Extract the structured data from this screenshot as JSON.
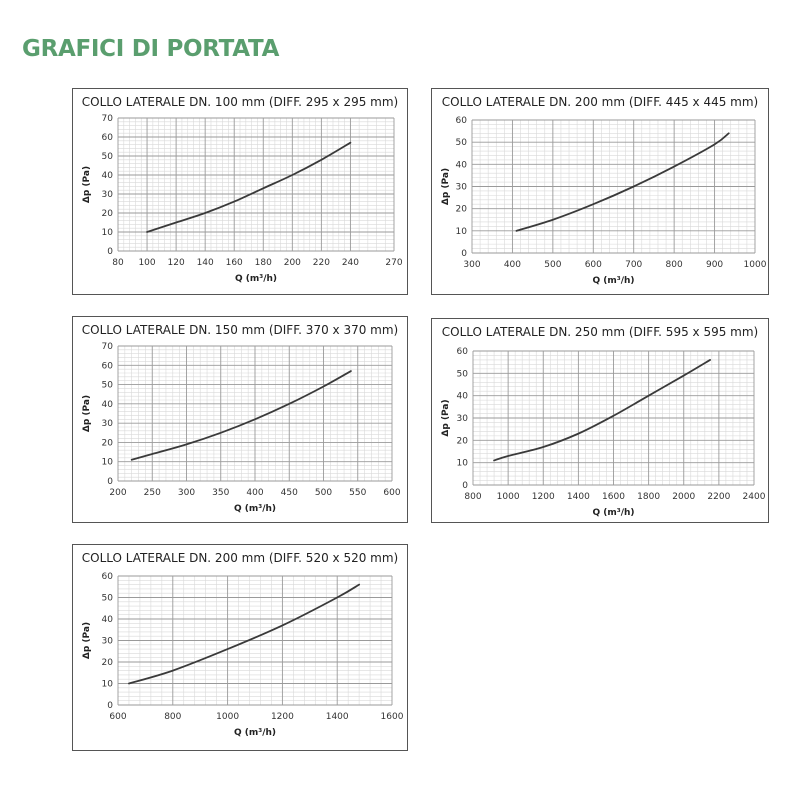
{
  "page": {
    "title": "GRAFICI DI PORTATA"
  },
  "chart_data": [
    {
      "type": "line",
      "title": "COLLO LATERALE DN. 100 mm (DIFF. 295 x 295 mm)",
      "xlabel": "Q (m³/h)",
      "ylabel": "Δp (Pa)",
      "xlim": [
        80,
        270
      ],
      "ylim": [
        0,
        70
      ],
      "xticks": [
        80,
        100,
        120,
        140,
        160,
        180,
        200,
        220,
        240,
        270
      ],
      "yticks": [
        0,
        10,
        20,
        30,
        40,
        50,
        60,
        70
      ],
      "grid": true,
      "x": [
        100,
        120,
        140,
        160,
        180,
        200,
        220,
        240
      ],
      "y": [
        10,
        15,
        20,
        26,
        33,
        40,
        48,
        57
      ]
    },
    {
      "type": "line",
      "title": "COLLO LATERALE DN. 200 mm (DIFF. 445 x 445 mm)",
      "xlabel": "Q (m³/h)",
      "ylabel": "Δp (Pa)",
      "xlim": [
        300,
        1000
      ],
      "ylim": [
        0,
        60
      ],
      "xticks": [
        300,
        400,
        500,
        600,
        700,
        800,
        900,
        1000
      ],
      "yticks": [
        0,
        10,
        20,
        30,
        40,
        50,
        60
      ],
      "grid": true,
      "x": [
        410,
        500,
        600,
        700,
        800,
        900,
        935
      ],
      "y": [
        10,
        15,
        22,
        30,
        39,
        49,
        54
      ]
    },
    {
      "type": "line",
      "title": "COLLO LATERALE DN. 150 mm (DIFF. 370 x 370 mm)",
      "xlabel": "Q (m³/h)",
      "ylabel": "Δp (Pa)",
      "xlim": [
        200,
        600
      ],
      "ylim": [
        0,
        70
      ],
      "xticks": [
        200,
        250,
        300,
        350,
        400,
        450,
        500,
        550,
        600
      ],
      "yticks": [
        0,
        10,
        20,
        30,
        40,
        50,
        60,
        70
      ],
      "grid": true,
      "x": [
        220,
        250,
        300,
        350,
        400,
        450,
        500,
        540
      ],
      "y": [
        11,
        14,
        19,
        25,
        32,
        40,
        49,
        57
      ]
    },
    {
      "type": "line",
      "title": "COLLO LATERALE DN. 250 mm (DIFF. 595 x 595 mm)",
      "xlabel": "Q (m³/h)",
      "ylabel": "Δp (Pa)",
      "xlim": [
        800,
        2400
      ],
      "ylim": [
        0,
        60
      ],
      "xticks": [
        800,
        1000,
        1200,
        1400,
        1600,
        1800,
        2000,
        2200,
        2400
      ],
      "yticks": [
        0,
        10,
        20,
        30,
        40,
        50,
        60
      ],
      "grid": true,
      "x": [
        920,
        1000,
        1200,
        1400,
        1600,
        1800,
        2000,
        2150
      ],
      "y": [
        11,
        13,
        17,
        23,
        31,
        40,
        49,
        56
      ]
    },
    {
      "type": "line",
      "title": "COLLO LATERALE DN. 200 mm (DIFF. 520 x 520 mm)",
      "xlabel": "Q (m³/h)",
      "ylabel": "Δp (Pa)",
      "xlim": [
        600,
        1600
      ],
      "ylim": [
        0,
        60
      ],
      "xticks": [
        600,
        800,
        1000,
        1200,
        1400,
        1600
      ],
      "yticks": [
        0,
        10,
        20,
        30,
        40,
        50,
        60
      ],
      "grid": true,
      "x": [
        640,
        800,
        1000,
        1200,
        1400,
        1480
      ],
      "y": [
        10,
        16,
        26,
        37,
        50,
        56
      ]
    }
  ]
}
